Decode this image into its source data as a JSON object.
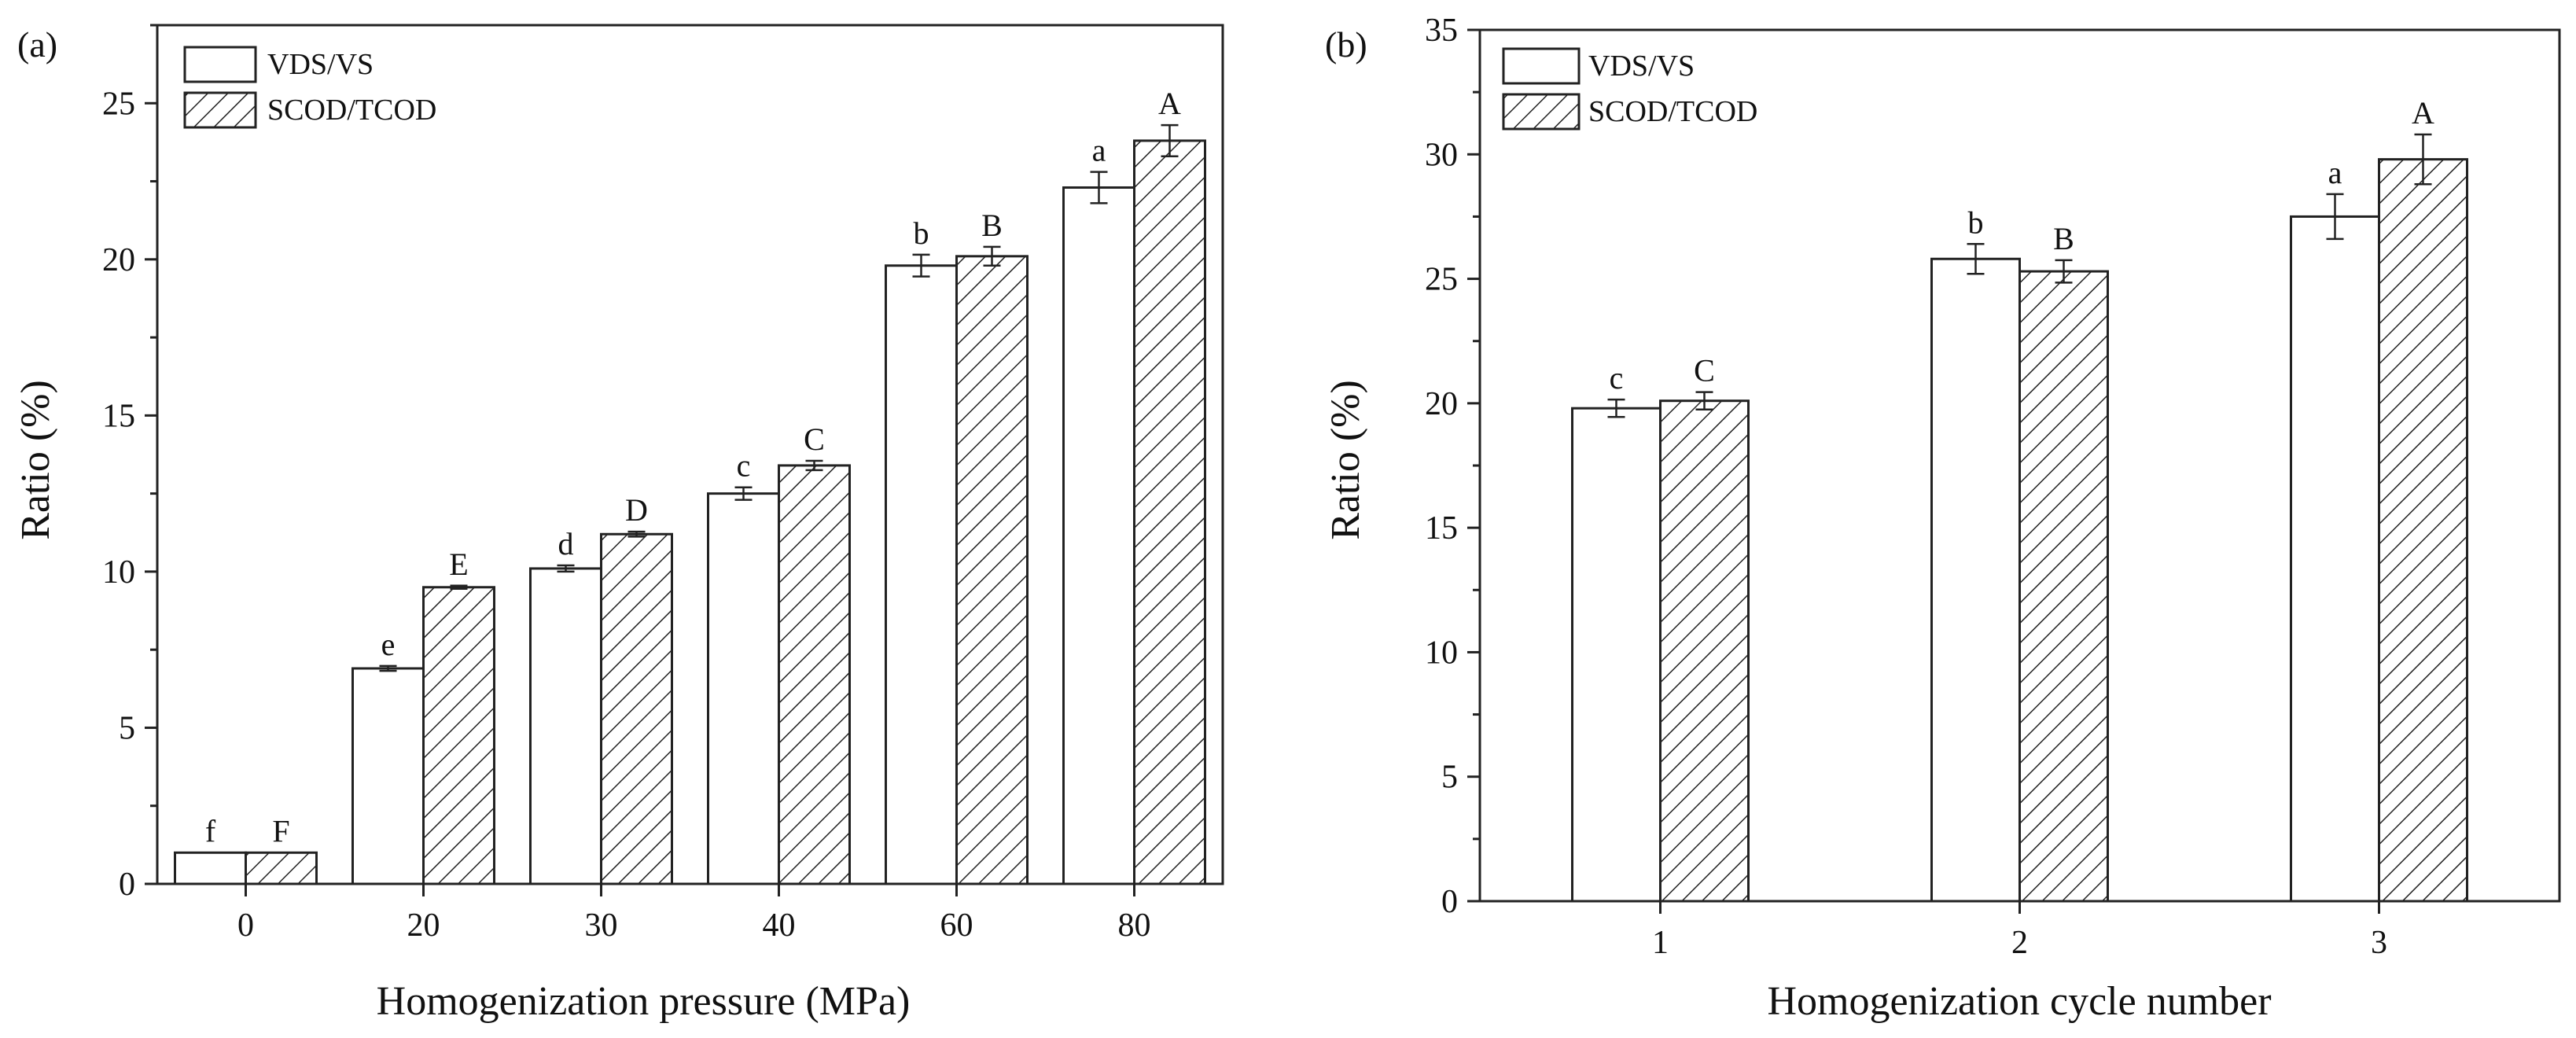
{
  "chart_data": [
    {
      "panel": "(a)",
      "type": "bar",
      "xlabel": "Homogenization pressure (MPa)",
      "ylabel": "Ratio (%)",
      "ylim": [
        0,
        27.5
      ],
      "yticks": [
        "0",
        "5",
        "10",
        "15",
        "20",
        "25"
      ],
      "categories": [
        "0",
        "20",
        "30",
        "40",
        "60",
        "80"
      ],
      "legend": {
        "position": "top-left",
        "entries": [
          "VDS/VS",
          "SCOD/TCOD"
        ]
      },
      "series": [
        {
          "name": "VDS/VS",
          "pattern": "hollow",
          "values": [
            1.0,
            6.9,
            10.1,
            12.5,
            19.8,
            22.3
          ],
          "errors": [
            0.0,
            0.08,
            0.1,
            0.2,
            0.35,
            0.5
          ],
          "letters": [
            "f",
            "e",
            "d",
            "c",
            "b",
            "a"
          ]
        },
        {
          "name": "SCOD/TCOD",
          "pattern": "hatched",
          "values": [
            1.0,
            9.5,
            11.2,
            13.4,
            20.1,
            23.8
          ],
          "errors": [
            0.0,
            0.05,
            0.08,
            0.15,
            0.3,
            0.5
          ],
          "letters": [
            "F",
            "E",
            "D",
            "C",
            "B",
            "A"
          ]
        }
      ]
    },
    {
      "panel": "(b)",
      "type": "bar",
      "xlabel": "Homogenization cycle number",
      "ylabel": "Ratio (%)",
      "ylim": [
        0,
        35
      ],
      "yticks": [
        "0",
        "5",
        "10",
        "15",
        "20",
        "25",
        "30",
        "35"
      ],
      "categories": [
        "1",
        "2",
        "3"
      ],
      "legend": {
        "position": "top-left",
        "entries": [
          "VDS/VS",
          "SCOD/TCOD"
        ]
      },
      "series": [
        {
          "name": "VDS/VS",
          "pattern": "hollow",
          "values": [
            19.8,
            25.8,
            27.5
          ],
          "errors": [
            0.35,
            0.6,
            0.9
          ],
          "letters": [
            "c",
            "b",
            "a"
          ]
        },
        {
          "name": "SCOD/TCOD",
          "pattern": "hatched",
          "values": [
            20.1,
            25.3,
            29.8
          ],
          "errors": [
            0.35,
            0.45,
            1.0
          ],
          "letters": [
            "C",
            "B",
            "A"
          ]
        }
      ]
    }
  ]
}
